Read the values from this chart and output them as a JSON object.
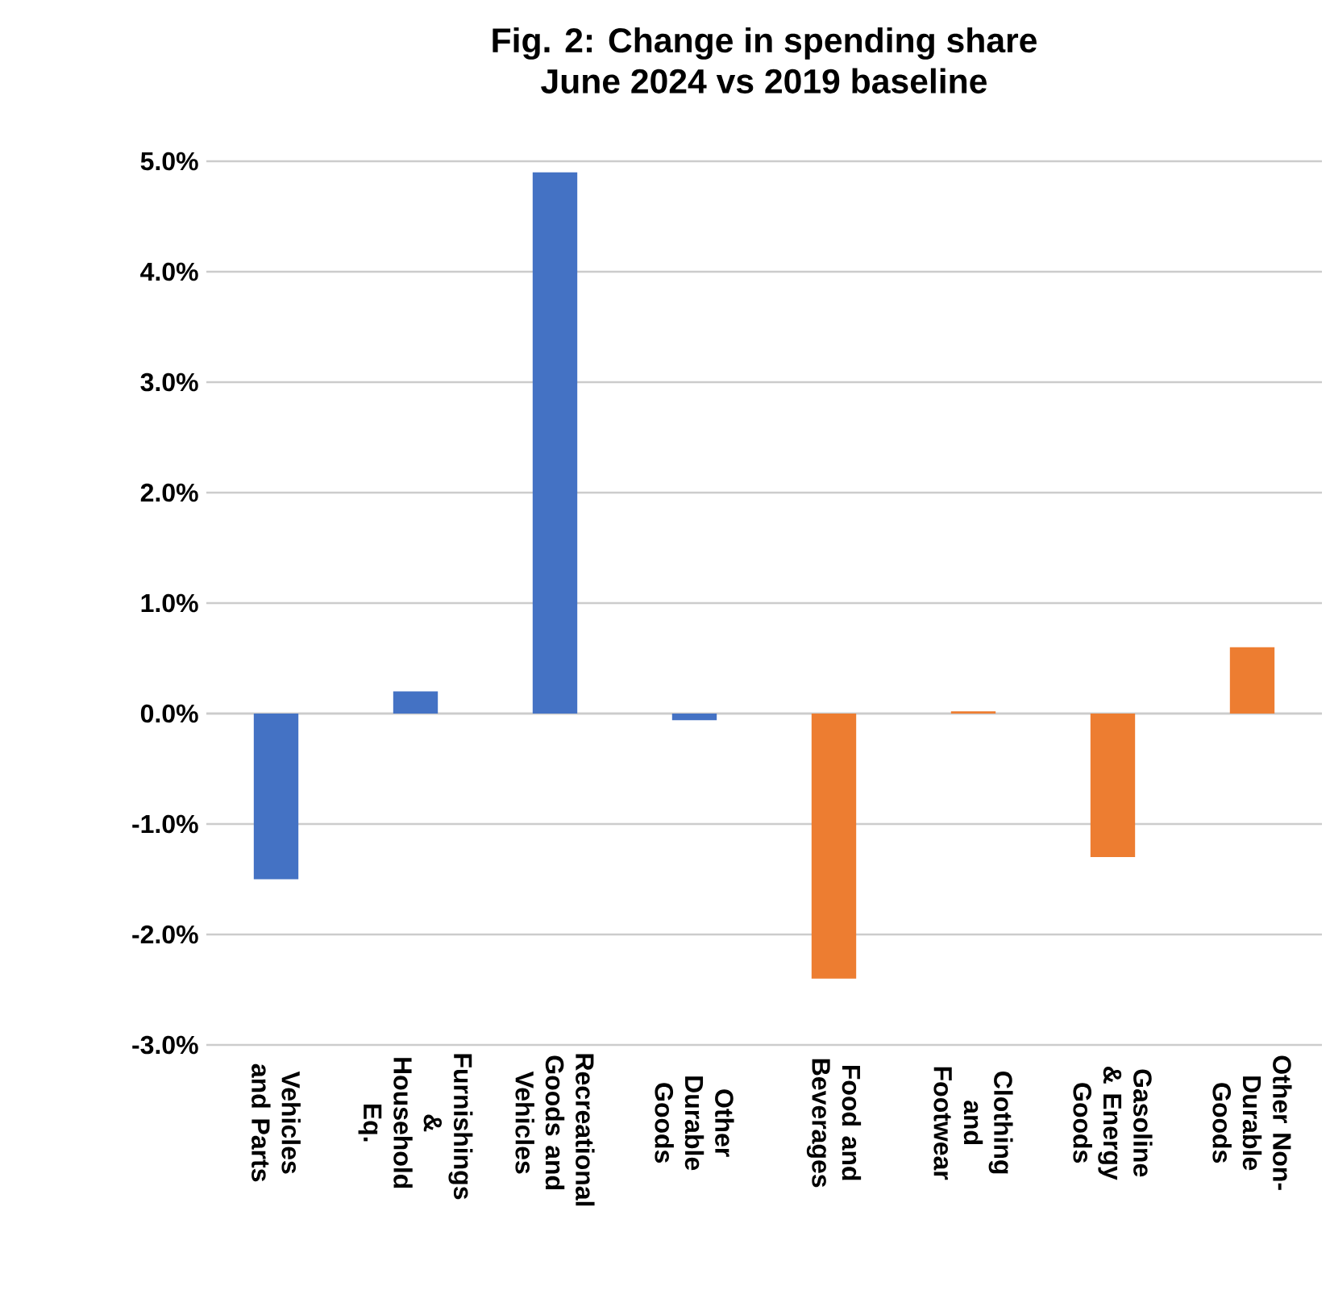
{
  "chart_data": {
    "type": "bar",
    "title": "Fig. 2: Change in spending share\nJune 2024 vs 2019 baseline",
    "categories": [
      "Vehicles and Parts",
      "Furnishings & Household Eq.",
      "Recreational Goods and Vehicles",
      "Other Durable Goods",
      "Food and Beverages",
      "Clothing and Footwear",
      "Gasoline & Energy Goods",
      "Other Non-Durable Goods"
    ],
    "values": [
      -1.5,
      0.2,
      4.9,
      -0.06,
      -2.4,
      0.02,
      -1.3,
      0.6
    ],
    "colors": [
      "#4472c4",
      "#4472c4",
      "#4472c4",
      "#4472c4",
      "#ed7d31",
      "#ed7d31",
      "#ed7d31",
      "#ed7d31"
    ],
    "ylim": [
      -3,
      5
    ],
    "yticks": [
      {
        "value": -3,
        "label": "-3.0%"
      },
      {
        "value": -2,
        "label": "-2.0%"
      },
      {
        "value": -1,
        "label": "-1.0%"
      },
      {
        "value": 0,
        "label": "0.0%"
      },
      {
        "value": 1,
        "label": "1.0%"
      },
      {
        "value": 2,
        "label": "2.0%"
      },
      {
        "value": 3,
        "label": "3.0%"
      },
      {
        "value": 4,
        "label": "4.0%"
      },
      {
        "value": 5,
        "label": "5.0%"
      }
    ],
    "grid": "y"
  }
}
